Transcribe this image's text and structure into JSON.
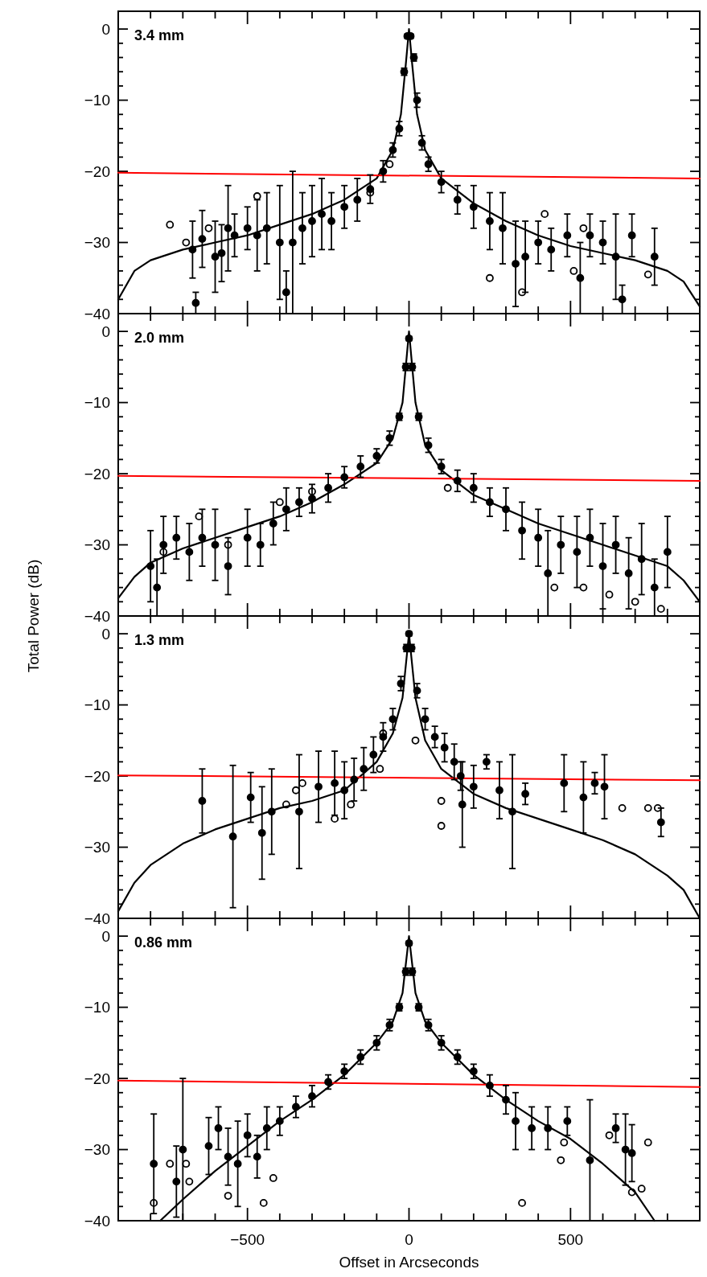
{
  "chart_data": [
    {
      "type": "scatter",
      "title": "3.4 mm",
      "xlim": [
        -900,
        900
      ],
      "xticks": [
        {
          "value": -800,
          "label": null
        },
        {
          "value": -700,
          "label": null
        },
        {
          "value": -600,
          "label": null
        },
        -500,
        {
          "value": -400,
          "label": null
        },
        {
          "value": -300,
          "label": null
        },
        {
          "value": -200,
          "label": null
        },
        {
          "value": -100,
          "label": null
        },
        0,
        {
          "value": 100,
          "label": null
        },
        {
          "value": 200,
          "label": null
        },
        {
          "value": 300,
          "label": null
        },
        {
          "value": 400,
          "label": null
        },
        500,
        {
          "value": 600,
          "label": null
        },
        {
          "value": 700,
          "label": null
        },
        {
          "value": 800,
          "label": null
        }
      ],
      "ylim": [
        -40,
        2.5
      ],
      "yticks": [
        -40,
        {
          "value": -38,
          "label": null
        },
        {
          "value": -36,
          "label": null
        },
        {
          "value": -34,
          "label": null
        },
        {
          "value": -32,
          "label": null
        },
        -30,
        {
          "value": -28,
          "label": null
        },
        {
          "value": -26,
          "label": null
        },
        {
          "value": -24,
          "label": null
        },
        {
          "value": -22,
          "label": null
        },
        -20,
        {
          "value": -18,
          "label": null
        },
        {
          "value": -16,
          "label": null
        },
        {
          "value": -14,
          "label": null
        },
        {
          "value": -12,
          "label": null
        },
        -10,
        {
          "value": -8,
          "label": null
        },
        {
          "value": -6,
          "label": null
        },
        {
          "value": -4,
          "label": null
        },
        {
          "value": -2,
          "label": null
        },
        0
      ],
      "tick_labels": "y",
      "marker": "circle",
      "series": [
        {
          "type": "line",
          "color": "#000000",
          "x": [
            -900,
            -850,
            -800,
            -700,
            -600,
            -500,
            -400,
            -300,
            -200,
            -100,
            -50,
            -25,
            -10,
            0,
            10,
            25,
            50,
            100,
            200,
            300,
            400,
            500,
            600,
            700,
            800,
            850,
            900
          ],
          "values": [
            -38,
            -34,
            -32.5,
            -31,
            -30,
            -29,
            -27.5,
            -26,
            -24,
            -21,
            -17,
            -12,
            -5,
            0,
            -5,
            -12,
            -17,
            -21,
            -24.5,
            -27,
            -29,
            -30.5,
            -31.5,
            -32.5,
            -34,
            -35.5,
            -39
          ],
          "marker": "none"
        },
        {
          "type": "line",
          "color": "#ff0000",
          "x": [
            -900,
            900
          ],
          "values": [
            -20.2,
            -21
          ],
          "marker": "none"
        },
        {
          "type": "scatter",
          "color": "#000000",
          "x": [
            -670,
            -660,
            -640,
            -600,
            -580,
            -560,
            -540,
            -500,
            -470,
            -440,
            -400,
            -380,
            -360,
            -330,
            -300,
            -270,
            -240,
            -200,
            -160,
            -120,
            -80,
            -50,
            -30,
            -15,
            -5,
            5,
            15,
            25,
            40,
            60,
            100,
            150,
            200,
            250,
            290,
            330,
            360,
            400,
            440,
            490,
            530,
            560,
            600,
            640,
            660,
            690,
            760
          ],
          "values": [
            -31,
            -38.5,
            -29.5,
            -32,
            -31.5,
            -28,
            -29,
            -28,
            -29,
            -28,
            -30,
            -37,
            -30,
            -28,
            -27,
            -26,
            -27,
            -25,
            -24,
            -22.5,
            -20,
            -17,
            -14,
            -6,
            -1,
            -1,
            -4,
            -10,
            -16,
            -19,
            -21.5,
            -24,
            -25,
            -27,
            -28,
            -33,
            -32,
            -30,
            -31,
            -29,
            -35,
            -29,
            -30,
            -32,
            -38,
            -29,
            -32
          ],
          "errors": [
            4,
            1.5,
            4,
            5,
            4,
            6,
            3,
            3,
            5,
            5,
            8,
            3,
            10,
            5,
            5,
            5,
            4,
            3,
            3,
            2,
            1.5,
            1,
            1,
            0.5,
            0.3,
            0.3,
            0.5,
            1,
            1,
            1,
            1.5,
            2,
            3,
            4,
            5,
            6,
            5,
            3,
            3,
            3,
            5,
            3,
            3,
            6,
            2,
            3,
            4
          ]
        },
        {
          "type": "scatter",
          "color": "#000000",
          "x": [
            -740,
            -690,
            -620,
            -470,
            -120,
            -60,
            250,
            350,
            420,
            510,
            540,
            740
          ],
          "values": [
            -27.5,
            -30,
            -28,
            -23.5,
            -23,
            -19,
            -35,
            -37,
            -26,
            -34,
            -28,
            -34.5
          ]
        }
      ]
    },
    {
      "type": "scatter",
      "title": "2.0 mm",
      "ylabel": "Total Power (dB)",
      "xlim": [
        -900,
        900
      ],
      "xticks": [
        {
          "value": -800,
          "label": null
        },
        {
          "value": -700,
          "label": null
        },
        {
          "value": -600,
          "label": null
        },
        -500,
        {
          "value": -400,
          "label": null
        },
        {
          "value": -300,
          "label": null
        },
        {
          "value": -200,
          "label": null
        },
        {
          "value": -100,
          "label": null
        },
        0,
        {
          "value": 100,
          "label": null
        },
        {
          "value": 200,
          "label": null
        },
        {
          "value": 300,
          "label": null
        },
        {
          "value": 400,
          "label": null
        },
        500,
        {
          "value": 600,
          "label": null
        },
        {
          "value": 700,
          "label": null
        },
        {
          "value": 800,
          "label": null
        }
      ],
      "ylim": [
        -40,
        2.5
      ],
      "yticks": [
        -40,
        {
          "value": -38,
          "label": null
        },
        {
          "value": -36,
          "label": null
        },
        {
          "value": -34,
          "label": null
        },
        {
          "value": -32,
          "label": null
        },
        -30,
        {
          "value": -28,
          "label": null
        },
        {
          "value": -26,
          "label": null
        },
        {
          "value": -24,
          "label": null
        },
        {
          "value": -22,
          "label": null
        },
        -20,
        {
          "value": -18,
          "label": null
        },
        {
          "value": -16,
          "label": null
        },
        {
          "value": -14,
          "label": null
        },
        {
          "value": -12,
          "label": null
        },
        -10,
        {
          "value": -8,
          "label": null
        },
        {
          "value": -6,
          "label": null
        },
        {
          "value": -4,
          "label": null
        },
        {
          "value": -2,
          "label": null
        },
        0
      ],
      "tick_labels": "y",
      "marker": "circle",
      "series": [
        {
          "type": "line",
          "color": "#000000",
          "x": [
            -900,
            -850,
            -800,
            -700,
            -600,
            -500,
            -400,
            -300,
            -200,
            -100,
            -50,
            -20,
            0,
            20,
            50,
            100,
            200,
            300,
            400,
            500,
            600,
            700,
            800,
            850,
            900
          ],
          "values": [
            -37.5,
            -34.5,
            -32.5,
            -30.5,
            -29,
            -27.5,
            -26,
            -24,
            -21.5,
            -18.5,
            -15,
            -10,
            0,
            -10,
            -16,
            -19.5,
            -23,
            -25,
            -27,
            -28.5,
            -30,
            -31.5,
            -33,
            -35,
            -38
          ],
          "marker": "none"
        },
        {
          "type": "line",
          "color": "#ff0000",
          "x": [
            -900,
            900
          ],
          "values": [
            -20.3,
            -21
          ],
          "marker": "none"
        },
        {
          "type": "scatter",
          "color": "#000000",
          "x": [
            -800,
            -780,
            -760,
            -720,
            -680,
            -640,
            -600,
            -560,
            -500,
            -460,
            -420,
            -380,
            -340,
            -300,
            -250,
            -200,
            -150,
            -100,
            -60,
            -30,
            -10,
            0,
            10,
            30,
            60,
            100,
            150,
            200,
            250,
            300,
            350,
            400,
            430,
            470,
            520,
            560,
            600,
            640,
            680,
            720,
            760,
            800
          ],
          "values": [
            -33,
            -36,
            -30,
            -29,
            -31,
            -29,
            -30,
            -33,
            -29,
            -30,
            -27,
            -25,
            -24,
            -23.5,
            -22,
            -20.5,
            -19,
            -17.5,
            -15,
            -12,
            -5,
            -1,
            -5,
            -12,
            -16,
            -19,
            -21,
            -22,
            -24,
            -25,
            -28,
            -29,
            -34,
            -30,
            -31,
            -29,
            -33,
            -30,
            -34,
            -32,
            -36,
            -31
          ],
          "errors": [
            5,
            4,
            4,
            3,
            4,
            4,
            5,
            4,
            4,
            3,
            3,
            3,
            2,
            2,
            2,
            1.5,
            1.5,
            1,
            1,
            0.5,
            0.5,
            0.3,
            0.5,
            0.5,
            1,
            1,
            1.5,
            2,
            2,
            3,
            4,
            4,
            6,
            4,
            5,
            4,
            6,
            4,
            5,
            5,
            4,
            5
          ]
        },
        {
          "type": "scatter",
          "color": "#000000",
          "x": [
            -760,
            -650,
            -560,
            -400,
            -300,
            120,
            450,
            540,
            620,
            700,
            780
          ],
          "values": [
            -31,
            -26,
            -30,
            -24,
            -22.5,
            -22,
            -36,
            -36,
            -37,
            -38,
            -39
          ]
        }
      ]
    },
    {
      "type": "scatter",
      "title": "1.3 mm",
      "xlim": [
        -900,
        900
      ],
      "xticks": [
        {
          "value": -800,
          "label": null
        },
        {
          "value": -700,
          "label": null
        },
        {
          "value": -600,
          "label": null
        },
        -500,
        {
          "value": -400,
          "label": null
        },
        {
          "value": -300,
          "label": null
        },
        {
          "value": -200,
          "label": null
        },
        {
          "value": -100,
          "label": null
        },
        0,
        {
          "value": 100,
          "label": null
        },
        {
          "value": 200,
          "label": null
        },
        {
          "value": 300,
          "label": null
        },
        {
          "value": 400,
          "label": null
        },
        500,
        {
          "value": 600,
          "label": null
        },
        {
          "value": 700,
          "label": null
        },
        {
          "value": 800,
          "label": null
        }
      ],
      "ylim": [
        -40,
        2.5
      ],
      "yticks": [
        -40,
        {
          "value": -38,
          "label": null
        },
        {
          "value": -36,
          "label": null
        },
        {
          "value": -34,
          "label": null
        },
        {
          "value": -32,
          "label": null
        },
        -30,
        {
          "value": -28,
          "label": null
        },
        {
          "value": -26,
          "label": null
        },
        {
          "value": -24,
          "label": null
        },
        {
          "value": -22,
          "label": null
        },
        -20,
        {
          "value": -18,
          "label": null
        },
        {
          "value": -16,
          "label": null
        },
        {
          "value": -14,
          "label": null
        },
        {
          "value": -12,
          "label": null
        },
        -10,
        {
          "value": -8,
          "label": null
        },
        {
          "value": -6,
          "label": null
        },
        {
          "value": -4,
          "label": null
        },
        {
          "value": -2,
          "label": null
        },
        0
      ],
      "tick_labels": "y",
      "marker": "circle",
      "series": [
        {
          "type": "line",
          "color": "#000000",
          "x": [
            -900,
            -850,
            -800,
            -700,
            -600,
            -500,
            -400,
            -300,
            -200,
            -100,
            -50,
            -20,
            0,
            20,
            50,
            100,
            200,
            300,
            400,
            500,
            600,
            700,
            800,
            850,
            900
          ],
          "values": [
            -39,
            -35,
            -32.5,
            -29.5,
            -27.5,
            -26,
            -24.5,
            -23.5,
            -22,
            -18,
            -14,
            -9,
            0,
            -9,
            -15,
            -19,
            -22.5,
            -24.5,
            -26,
            -27.5,
            -29,
            -31,
            -34,
            -36,
            -40
          ],
          "marker": "none"
        },
        {
          "type": "line",
          "color": "#ff0000",
          "x": [
            -900,
            900
          ],
          "values": [
            -19.9,
            -20.6
          ],
          "marker": "none"
        },
        {
          "type": "scatter",
          "color": "#000000",
          "x": [
            -640,
            -545,
            -490,
            -455,
            -425,
            -340,
            -280,
            -230,
            -200,
            -170,
            -140,
            -110,
            -80,
            -50,
            -25,
            -8,
            0,
            8,
            25,
            50,
            80,
            110,
            140,
            160,
            165,
            200,
            240,
            280,
            320,
            360,
            480,
            540,
            575,
            605,
            780
          ],
          "values": [
            -23.5,
            -28.5,
            -23,
            -28,
            -25,
            -25,
            -21.5,
            -21,
            -22,
            -20.5,
            -19,
            -17,
            -14.5,
            -12,
            -7,
            -2,
            0,
            -2,
            -8,
            -12,
            -14.5,
            -16,
            -18,
            -20,
            -24,
            -21.5,
            -18,
            -22,
            -25,
            -22.5,
            -21,
            -23,
            -21,
            -21.5,
            -26.5
          ],
          "errors": [
            4.5,
            10,
            3.5,
            6.5,
            6,
            8,
            5,
            4.5,
            4,
            3,
            3,
            2.5,
            2,
            1.5,
            1,
            0.5,
            0.3,
            0.5,
            1,
            1.5,
            1.5,
            2,
            2.5,
            2,
            6,
            3,
            1,
            4,
            8,
            1.5,
            4,
            5,
            1.5,
            4.5,
            2
          ]
        },
        {
          "type": "scatter",
          "color": "#000000",
          "x": [
            -380,
            -350,
            -330,
            -230,
            -180,
            -90,
            -80,
            20,
            100,
            100,
            660,
            740,
            770
          ],
          "values": [
            -24,
            -22,
            -21,
            -26,
            -24,
            -19,
            -14,
            -15,
            -23.5,
            -27,
            -24.5,
            -24.5,
            -24.5
          ]
        }
      ]
    },
    {
      "type": "scatter",
      "title": "0.86 mm",
      "xlabel": "Offset in Arcseconds",
      "xlim": [
        -900,
        900
      ],
      "xticks": [
        {
          "value": -800,
          "label": null
        },
        {
          "value": -700,
          "label": null
        },
        {
          "value": -600,
          "label": null
        },
        -500,
        {
          "value": -400,
          "label": null
        },
        {
          "value": -300,
          "label": null
        },
        {
          "value": -200,
          "label": null
        },
        {
          "value": -100,
          "label": null
        },
        0,
        {
          "value": 100,
          "label": null
        },
        {
          "value": 200,
          "label": null
        },
        {
          "value": 300,
          "label": null
        },
        {
          "value": 400,
          "label": null
        },
        500,
        {
          "value": 600,
          "label": null
        },
        {
          "value": 700,
          "label": null
        },
        {
          "value": 800,
          "label": null
        }
      ],
      "ylim": [
        -40,
        2.5
      ],
      "yticks": [
        -40,
        {
          "value": -38,
          "label": null
        },
        {
          "value": -36,
          "label": null
        },
        {
          "value": -34,
          "label": null
        },
        {
          "value": -32,
          "label": null
        },
        -30,
        {
          "value": -28,
          "label": null
        },
        {
          "value": -26,
          "label": null
        },
        {
          "value": -24,
          "label": null
        },
        {
          "value": -22,
          "label": null
        },
        -20,
        {
          "value": -18,
          "label": null
        },
        {
          "value": -16,
          "label": null
        },
        {
          "value": -14,
          "label": null
        },
        {
          "value": -12,
          "label": null
        },
        -10,
        {
          "value": -8,
          "label": null
        },
        {
          "value": -6,
          "label": null
        },
        {
          "value": -4,
          "label": null
        },
        {
          "value": -2,
          "label": null
        },
        0
      ],
      "marker": "circle",
      "series": [
        {
          "type": "line",
          "color": "#000000",
          "x": [
            -770,
            -700,
            -600,
            -500,
            -400,
            -300,
            -200,
            -100,
            -50,
            -20,
            0,
            20,
            50,
            100,
            200,
            300,
            400,
            500,
            600,
            700,
            760
          ],
          "values": [
            -40,
            -37,
            -33,
            -29.5,
            -26,
            -23,
            -19.5,
            -15,
            -12,
            -8,
            0,
            -8,
            -12,
            -15,
            -19.5,
            -23,
            -26,
            -28.5,
            -32,
            -36,
            -40
          ],
          "marker": "none"
        },
        {
          "type": "line",
          "color": "#ff0000",
          "x": [
            -900,
            900
          ],
          "values": [
            -20.3,
            -21.2
          ],
          "marker": "none"
        },
        {
          "type": "scatter",
          "color": "#000000",
          "x": [
            -790,
            -720,
            -700,
            -620,
            -590,
            -560,
            -530,
            -500,
            -470,
            -440,
            -400,
            -350,
            -300,
            -250,
            -200,
            -150,
            -100,
            -60,
            -30,
            -10,
            0,
            10,
            30,
            60,
            100,
            150,
            200,
            250,
            300,
            330,
            380,
            430,
            490,
            560,
            640,
            670,
            690
          ],
          "values": [
            -32,
            -34.5,
            -30,
            -29.5,
            -27,
            -31,
            -32,
            -28,
            -31,
            -27,
            -26,
            -24,
            -22.5,
            -20.5,
            -19,
            -17,
            -15,
            -12.5,
            -10,
            -5,
            -1,
            -5,
            -10,
            -12.5,
            -15,
            -17,
            -19,
            -21,
            -23,
            -26,
            -27,
            -27,
            -26,
            -31.5,
            -27,
            -30,
            -30.5
          ],
          "errors": [
            7,
            5,
            10,
            4,
            3,
            4,
            6,
            3,
            3,
            3,
            2,
            1.5,
            1.5,
            1,
            1,
            1,
            1,
            0.8,
            0.5,
            0.5,
            0.3,
            0.5,
            0.5,
            0.8,
            1,
            1,
            1,
            1.5,
            2,
            4,
            3,
            3,
            2,
            8.5,
            2,
            5,
            4
          ]
        },
        {
          "type": "scatter",
          "color": "#000000",
          "x": [
            -790,
            -740,
            -690,
            -680,
            -560,
            -450,
            -420,
            350,
            470,
            480,
            620,
            690,
            720,
            740
          ],
          "values": [
            -37.5,
            -32,
            -32,
            -34.5,
            -36.5,
            -37.5,
            -34,
            -37.5,
            -31.5,
            -29,
            -28,
            -36,
            -35.5,
            -29
          ]
        }
      ]
    }
  ]
}
